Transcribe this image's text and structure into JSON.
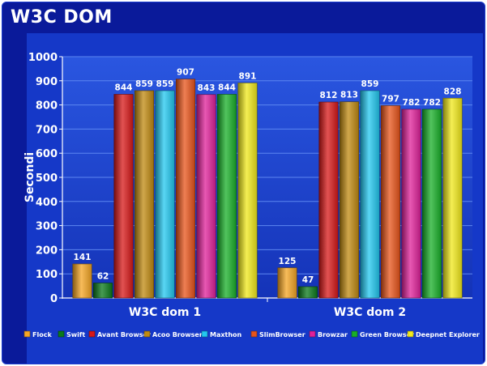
{
  "chart_data": {
    "type": "bar",
    "title": "W3C DOM",
    "xlabel": "",
    "ylabel": "Secondi",
    "ylim": [
      0,
      1000
    ],
    "yticks": [
      0,
      100,
      200,
      300,
      400,
      500,
      600,
      700,
      800,
      900,
      1000
    ],
    "grid": true,
    "legend_position": "bottom",
    "categories": [
      "W3C dom 1",
      "W3C dom 2"
    ],
    "series": [
      {
        "name": "Flock",
        "values": [
          141,
          125
        ],
        "color": "#f5a623"
      },
      {
        "name": "Swift",
        "values": [
          62,
          47
        ],
        "color": "#0a7a1a"
      },
      {
        "name": "Avant Browser",
        "values": [
          844,
          812
        ],
        "color": "#d81818"
      },
      {
        "name": "Acoo Browser",
        "values": [
          859,
          813
        ],
        "color": "#c08a10"
      },
      {
        "name": "Maxthon",
        "values": [
          859,
          859
        ],
        "color": "#22c8f0"
      },
      {
        "name": "SlimBrowser",
        "values": [
          907,
          797
        ],
        "color": "#e8541a"
      },
      {
        "name": "Browzar",
        "values": [
          843,
          782
        ],
        "color": "#e0209a"
      },
      {
        "name": "Green Browser",
        "values": [
          844,
          782
        ],
        "color": "#18b028"
      },
      {
        "name": "Deepnet Explorer",
        "values": [
          891,
          828
        ],
        "color": "#f2ea1a"
      }
    ]
  }
}
